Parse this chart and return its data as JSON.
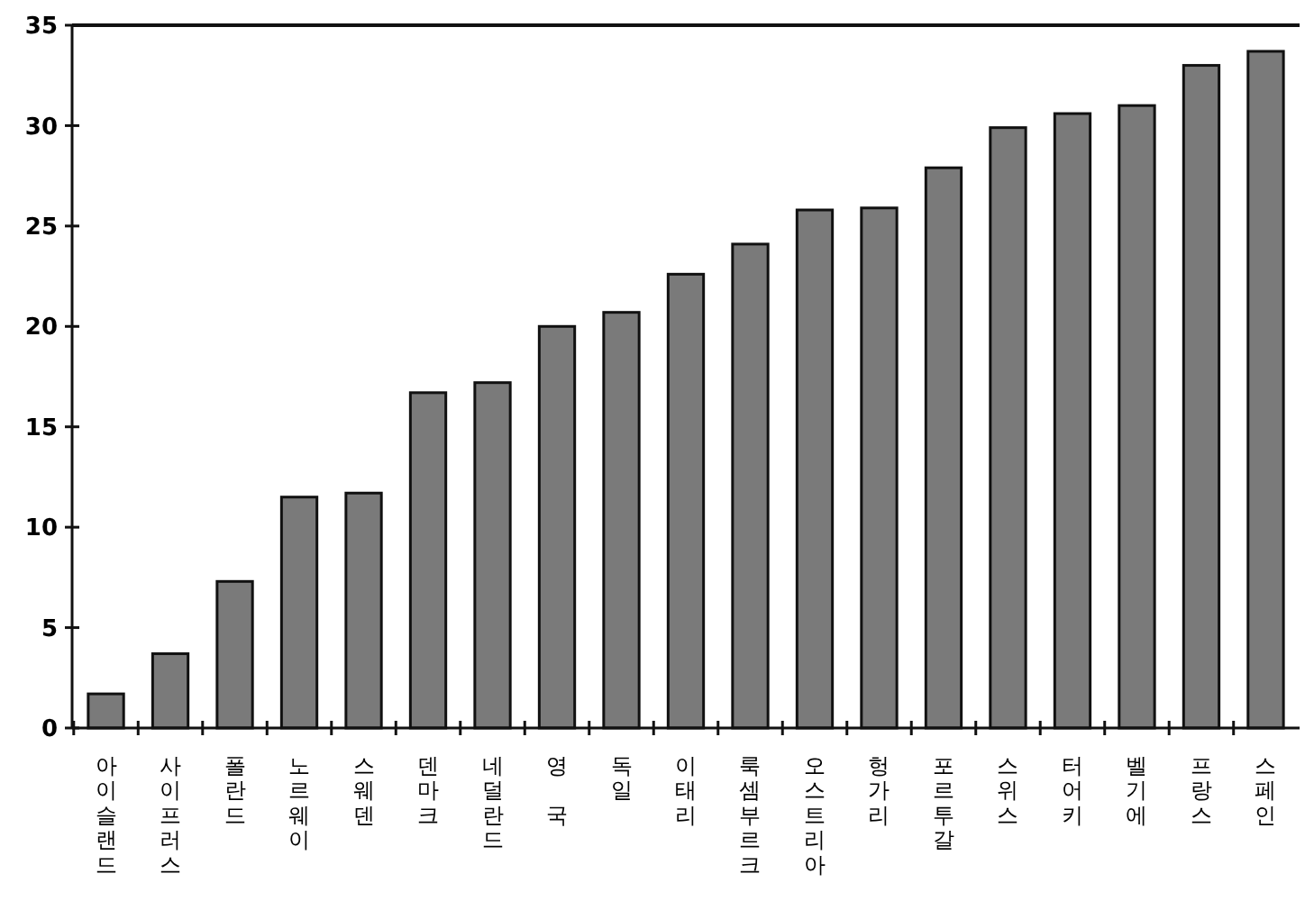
{
  "chart_data": {
    "type": "bar",
    "categories": [
      "아이슬랜드",
      "사이프러스",
      "폴란드",
      "노르웨이",
      "스웨덴",
      "덴마크",
      "네덜란드",
      "영 국",
      "독일",
      "이태리",
      "룩셈부르크",
      "오스트리아",
      "헝가리",
      "포르투갈",
      "스위스",
      "터어키",
      "벨기에",
      "프랑스",
      "스페인"
    ],
    "values": [
      1.7,
      3.7,
      7.3,
      11.5,
      11.7,
      16.7,
      17.2,
      20.0,
      20.7,
      22.6,
      24.1,
      25.8,
      25.9,
      27.9,
      29.9,
      30.6,
      31.0,
      33.0,
      33.7
    ],
    "color": "#7a7a7a",
    "ylim": [
      0,
      35
    ],
    "yticks": [
      0,
      5,
      10,
      15,
      20,
      25,
      30,
      35
    ]
  }
}
